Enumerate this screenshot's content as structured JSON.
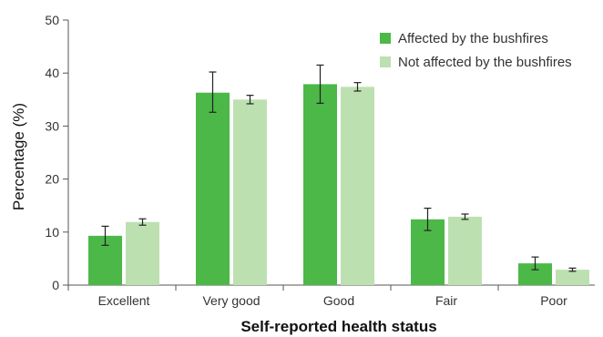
{
  "chart_data": {
    "type": "bar",
    "title": "",
    "xlabel": "Self-reported health status",
    "ylabel": "Percentage (%)",
    "ylim": [
      0,
      50
    ],
    "yticks": [
      0,
      10,
      20,
      30,
      40,
      50
    ],
    "grid": false,
    "legend_position": "top-right",
    "categories": [
      "Excellent",
      "Very good",
      "Good",
      "Fair",
      "Poor"
    ],
    "series": [
      {
        "name": "Affected by the bushfires",
        "color": "#4cb848",
        "values": [
          9.3,
          36.3,
          37.9,
          12.4,
          4.1
        ],
        "error_low": [
          7.5,
          32.6,
          34.3,
          10.3,
          2.9
        ],
        "error_high": [
          11.1,
          40.2,
          41.5,
          14.5,
          5.3
        ]
      },
      {
        "name": "Not affected by the bushfires",
        "color": "#bde0b1",
        "values": [
          11.9,
          35.0,
          37.4,
          12.9,
          2.9
        ],
        "error_low": [
          11.3,
          34.2,
          36.6,
          12.4,
          2.6
        ],
        "error_high": [
          12.5,
          35.8,
          38.2,
          13.4,
          3.2
        ]
      }
    ]
  }
}
